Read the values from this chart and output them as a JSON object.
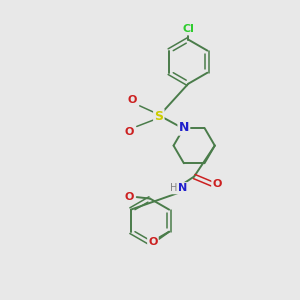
{
  "bg": "#e8e8e8",
  "bond": "#4a7c4a",
  "cl_col": "#2ecc2e",
  "s_col": "#cccc00",
  "n_col": "#2020cc",
  "o_col": "#cc2020",
  "h_col": "#808080",
  "figsize": [
    3.0,
    3.0
  ],
  "dpi": 100,
  "xlim": [
    0,
    10
  ],
  "ylim": [
    0,
    10
  ]
}
